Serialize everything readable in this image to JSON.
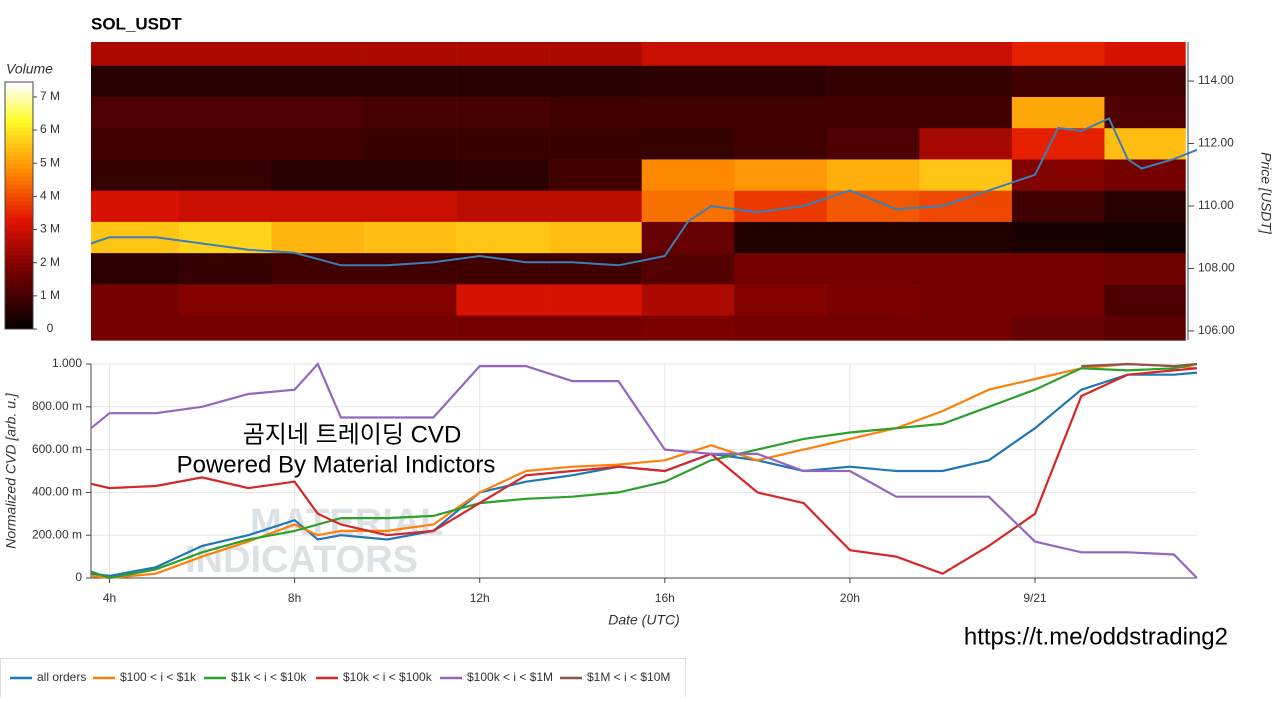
{
  "chart_data": [
    {
      "type": "heatmap",
      "title": "SOL_USDT",
      "colorbar_label": "Volume",
      "y2_label": "Price [USDT]",
      "xlim": [
        3.6,
        27.5
      ],
      "x_bins": [
        3.6,
        5.5,
        7.5,
        9.5,
        11.5,
        13.5,
        15.5,
        17.5,
        19.5,
        21.5,
        23.5,
        25.5,
        27.25
      ],
      "y_bins": [
        105.7,
        106.5,
        107.5,
        108.5,
        109.5,
        110.5,
        111.5,
        112.5,
        113.5,
        114.5,
        115.25
      ],
      "values": [
        [
          1800000.0,
          1800000.0,
          1800000.0,
          1800000.0,
          1800000.0,
          1800000.0,
          1900000.0,
          1800000.0,
          1800000.0,
          1800000.0,
          1600000.0,
          1400000.0
        ],
        [
          1800000.0,
          2000000.0,
          2000000.0,
          2000000.0,
          3200000.0,
          3200000.0,
          2600000.0,
          2000000.0,
          1900000.0,
          1800000.0,
          1800000.0,
          1200000.0
        ],
        [
          700000.0,
          800000.0,
          1000000.0,
          1000000.0,
          1000000.0,
          1000000.0,
          1300000.0,
          1800000.0,
          1800000.0,
          1800000.0,
          1800000.0,
          1700000.0
        ],
        [
          5600000.0,
          5800000.0,
          5400000.0,
          5500000.0,
          5600000.0,
          5500000.0,
          1600000.0,
          500000.0,
          500000.0,
          500000.0,
          400000.0,
          300000.0
        ],
        [
          3200000.0,
          3000000.0,
          3000000.0,
          3000000.0,
          2800000.0,
          2800000.0,
          4500000.0,
          3800000.0,
          4200000.0,
          4000000.0,
          1000000.0,
          600000.0
        ],
        [
          800000.0,
          800000.0,
          600000.0,
          600000.0,
          700000.0,
          1000000.0,
          4800000.0,
          5000000.0,
          5300000.0,
          5600000.0,
          2000000.0,
          1800000.0
        ],
        [
          1000000.0,
          1000000.0,
          1000000.0,
          900000.0,
          900000.0,
          900000.0,
          800000.0,
          1000000.0,
          1200000.0,
          2500000.0,
          3500000.0,
          5500000.0
        ],
        [
          1200000.0,
          1200000.0,
          1200000.0,
          1100000.0,
          1100000.0,
          1000000.0,
          1000000.0,
          1000000.0,
          1000000.0,
          1000000.0,
          5200000.0,
          1200000.0
        ],
        [
          600000.0,
          600000.0,
          600000.0,
          600000.0,
          600000.0,
          600000.0,
          700000.0,
          700000.0,
          800000.0,
          800000.0,
          1000000.0,
          1000000.0
        ],
        [
          2600000.0,
          2600000.0,
          2600000.0,
          2600000.0,
          2600000.0,
          2600000.0,
          3000000.0,
          3000000.0,
          3000000.0,
          3000000.0,
          3500000.0,
          3200000.0
        ]
      ],
      "clim": [
        0,
        7450000
      ],
      "cticks": [
        0,
        {
          "value": 1000000,
          "label": "1 M"
        },
        {
          "value": 2000000,
          "label": "2 M"
        },
        {
          "value": 3000000,
          "label": "3 M"
        },
        {
          "value": 4000000,
          "label": "4 M"
        },
        {
          "value": 5000000,
          "label": "5 M"
        },
        {
          "value": 6000000,
          "label": "6 M"
        },
        {
          "value": 7000000,
          "label": "7 M"
        }
      ],
      "y2lim": [
        105.71,
        115.25
      ],
      "y2ticks": [
        {
          "value": 106,
          "label": "106.00"
        },
        {
          "value": 108,
          "label": "108.00"
        },
        {
          "value": 110,
          "label": "110.00"
        },
        {
          "value": 112,
          "label": "112.00"
        },
        {
          "value": 114,
          "label": "114.00"
        }
      ],
      "price_line": {
        "color": "#3a7fb8",
        "x": [
          3.6,
          4,
          5,
          6,
          7,
          8,
          9,
          10,
          11,
          12,
          13,
          14,
          15,
          16,
          16.5,
          17,
          18,
          19,
          20,
          21,
          22,
          23,
          24,
          24.5,
          25,
          25.6,
          26,
          26.3,
          27,
          27.5
        ],
        "values": [
          108.8,
          109.0,
          109.0,
          108.8,
          108.6,
          108.5,
          108.1,
          108.1,
          108.2,
          108.4,
          108.2,
          108.2,
          108.1,
          108.4,
          109.5,
          110.0,
          109.8,
          110.0,
          110.5,
          109.9,
          110.0,
          110.5,
          111.0,
          112.5,
          112.4,
          112.8,
          111.5,
          111.2,
          111.5,
          111.8
        ]
      }
    },
    {
      "type": "line",
      "x_label": "Date (UTC)",
      "y_label": "Normalized CVD [arb. u.]",
      "xlim": [
        3.6,
        27.5
      ],
      "ylim": [
        0,
        1
      ],
      "xticks": [
        {
          "value": 4,
          "label": "4h"
        },
        {
          "value": 8,
          "label": "8h"
        },
        {
          "value": 12,
          "label": "12h"
        },
        {
          "value": 16,
          "label": "16h"
        },
        {
          "value": 20,
          "label": "20h"
        },
        {
          "value": 24,
          "label": "9/21"
        }
      ],
      "yticks": [
        0,
        {
          "value": 0.2,
          "label": "200.00 m"
        },
        {
          "value": 0.4,
          "label": "400.00 m"
        },
        {
          "value": 0.6,
          "label": "600.00 m"
        },
        {
          "value": 0.8,
          "label": "800.00 m"
        },
        {
          "value": 1,
          "label": "1.000"
        }
      ],
      "grid": true,
      "legend": "bottom-left",
      "x": [
        3.6,
        4,
        5,
        6,
        7,
        8,
        8.5,
        9,
        10,
        11,
        12,
        13,
        14,
        15,
        16,
        17,
        18,
        19,
        20,
        21,
        22,
        23,
        24,
        25,
        26,
        27,
        27.5
      ],
      "series": [
        {
          "name": "all orders",
          "color": "#1f77b4",
          "values": [
            0.02,
            0.01,
            0.05,
            0.15,
            0.2,
            0.27,
            0.18,
            0.2,
            0.18,
            0.22,
            0.4,
            0.45,
            0.48,
            0.52,
            0.5,
            0.58,
            0.55,
            0.5,
            0.52,
            0.5,
            0.5,
            0.55,
            0.7,
            0.88,
            0.95,
            0.95,
            0.96
          ]
        },
        {
          "name": "$100 < i < $1k",
          "color": "#ff7f0e",
          "values": [
            0.01,
            0.0,
            0.02,
            0.1,
            0.17,
            0.25,
            0.2,
            0.22,
            0.22,
            0.25,
            0.4,
            0.5,
            0.52,
            0.53,
            0.55,
            0.62,
            0.55,
            0.6,
            0.65,
            0.7,
            0.78,
            0.88,
            0.93,
            0.98,
            1.0,
            0.99,
            0.98
          ]
        },
        {
          "name": "$1k < i < $10k",
          "color": "#2ca02c",
          "values": [
            0.03,
            0.0,
            0.04,
            0.12,
            0.18,
            0.22,
            0.25,
            0.28,
            0.28,
            0.29,
            0.35,
            0.37,
            0.38,
            0.4,
            0.45,
            0.55,
            0.6,
            0.65,
            0.68,
            0.7,
            0.72,
            0.8,
            0.88,
            0.98,
            0.97,
            0.98,
            1.0
          ]
        },
        {
          "name": "$10k < i < $100k",
          "color": "#d62728",
          "values": [
            0.44,
            0.42,
            0.43,
            0.47,
            0.42,
            0.45,
            0.3,
            0.25,
            0.2,
            0.22,
            0.35,
            0.48,
            0.5,
            0.52,
            0.5,
            0.58,
            0.4,
            0.35,
            0.13,
            0.1,
            0.02,
            0.15,
            0.3,
            0.85,
            0.95,
            0.97,
            0.98
          ]
        },
        {
          "name": "$100k < i < $1M",
          "color": "#9467bd",
          "values": [
            0.7,
            0.77,
            0.77,
            0.8,
            0.86,
            0.88,
            1.0,
            0.75,
            0.75,
            0.75,
            0.99,
            0.99,
            0.92,
            0.92,
            0.6,
            0.58,
            0.58,
            0.5,
            0.5,
            0.38,
            0.38,
            0.38,
            0.17,
            0.12,
            0.12,
            0.11,
            0.0
          ]
        },
        {
          "name": "$1M < i < $10M",
          "color": "#8c564b",
          "values": [
            null,
            null,
            null,
            null,
            null,
            null,
            null,
            null,
            null,
            null,
            null,
            null,
            null,
            null,
            null,
            null,
            null,
            null,
            null,
            null,
            null,
            null,
            null,
            0.99,
            1.0,
            0.99,
            1.0
          ]
        }
      ],
      "annotations": [
        "곰지네 트레이딩 CVD",
        "Powered By Material Indictors",
        "https://t.me/oddstrading2"
      ],
      "watermark": [
        "MATERIAL",
        "INDICATORS"
      ]
    }
  ]
}
